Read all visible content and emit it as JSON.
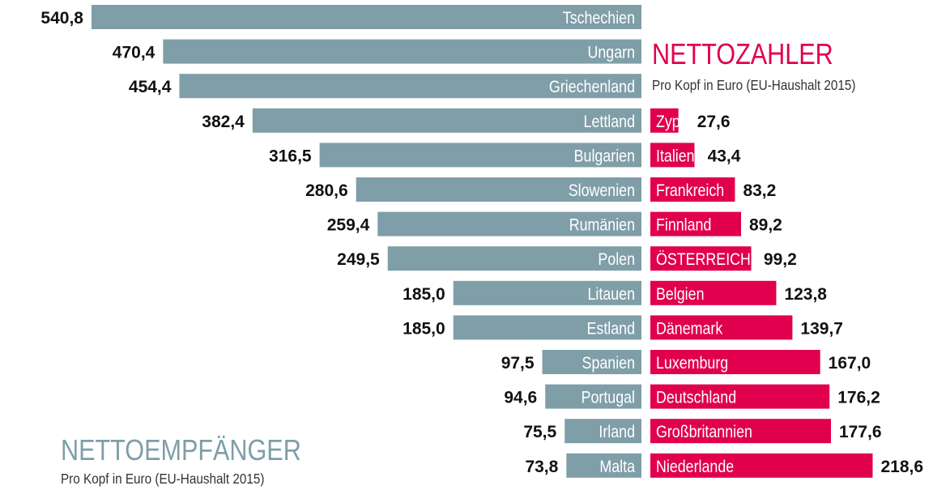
{
  "chart_data": [
    {
      "type": "bar",
      "orientation": "horizontal",
      "title": "NETTOEMPFÄNGER",
      "subtitle": "Pro Kopf in Euro (EU-Haushalt 2015)",
      "color": "#7f9ea8",
      "categories": [
        "Tschechien",
        "Ungarn",
        "Griechenland",
        "Lettland",
        "Bulgarien",
        "Slowenien",
        "Rumänien",
        "Polen",
        "Litauen",
        "Estland",
        "Spanien",
        "Portugal",
        "Irland",
        "Malta"
      ],
      "values": [
        540.8,
        470.4,
        454.4,
        382.4,
        316.5,
        280.6,
        259.4,
        249.5,
        185.0,
        185.0,
        97.5,
        94.6,
        75.5,
        73.8
      ],
      "value_labels": [
        "540,8",
        "470,4",
        "454,4",
        "382,4",
        "316,5",
        "280,6",
        "259,4",
        "249,5",
        "185,0",
        "185,0",
        "97,5",
        "94,6",
        "75,5",
        "73,8"
      ]
    },
    {
      "type": "bar",
      "orientation": "horizontal",
      "title": "NETTOZAHLER",
      "subtitle": "Pro Kopf in Euro (EU-Haushalt 2015)",
      "color": "#e0004d",
      "categories": [
        "Zyp.",
        "Italien",
        "Frankreich",
        "Finnland",
        "ÖSTERREICH",
        "Belgien",
        "Dänemark",
        "Luxemburg",
        "Deutschland",
        "Großbritannien",
        "Niederlande"
      ],
      "values": [
        27.6,
        43.4,
        83.2,
        89.2,
        99.2,
        123.8,
        139.7,
        167.0,
        176.2,
        177.6,
        218.6
      ],
      "value_labels": [
        "27,6",
        "43,4",
        "83,2",
        "89,2",
        "99,2",
        "123,8",
        "139,7",
        "167,0",
        "176,2",
        "177,6",
        "218,6"
      ]
    }
  ]
}
